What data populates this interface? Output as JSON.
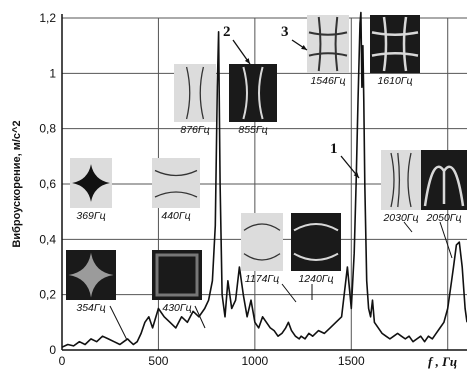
{
  "chart_data": {
    "type": "line",
    "title": "",
    "xlabel": "f , Гц",
    "ylabel": "Виброускорение, м/с^2",
    "xlim": [
      0,
      2100
    ],
    "ylim": [
      0,
      1.2
    ],
    "grid": true,
    "x_ticks": [
      0,
      500,
      1000,
      1500,
      2000
    ],
    "x_tick_labels": [
      "0",
      "500",
      "1000",
      "1500",
      ""
    ],
    "y_ticks": [
      0,
      0.2,
      0.4,
      0.6,
      0.8,
      1.0,
      1.2
    ],
    "y_tick_labels": [
      "0",
      "0,2",
      "0,4",
      "0,6",
      "0,8",
      "1",
      "1,2"
    ],
    "series": [
      {
        "name": "",
        "x": [
          0,
          30,
          60,
          90,
          120,
          150,
          180,
          210,
          240,
          270,
          300,
          320,
          340,
          354,
          370,
          390,
          410,
          430,
          450,
          470,
          500,
          530,
          560,
          590,
          620,
          650,
          680,
          710,
          740,
          760,
          780,
          795,
          805,
          812,
          820,
          830,
          845,
          860,
          880,
          900,
          920,
          940,
          960,
          980,
          1000,
          1020,
          1040,
          1060,
          1080,
          1100,
          1120,
          1140,
          1160,
          1174,
          1190,
          1210,
          1230,
          1240,
          1260,
          1280,
          1300,
          1330,
          1360,
          1390,
          1420,
          1450,
          1480,
          1500,
          1515,
          1525,
          1535,
          1545,
          1550,
          1555,
          1560,
          1565,
          1570,
          1580,
          1590,
          1600,
          1610,
          1620,
          1640,
          1660,
          1680,
          1700,
          1720,
          1740,
          1760,
          1780,
          1800,
          1820,
          1840,
          1860,
          1880,
          1900,
          1920,
          1940,
          1960,
          1980,
          2000,
          2020,
          2030,
          2045,
          2060,
          2075,
          2090,
          2100
        ],
        "y": [
          0.01,
          0.02,
          0.015,
          0.03,
          0.02,
          0.04,
          0.03,
          0.05,
          0.04,
          0.03,
          0.02,
          0.03,
          0.04,
          0.03,
          0.02,
          0.03,
          0.06,
          0.1,
          0.12,
          0.08,
          0.15,
          0.12,
          0.1,
          0.08,
          0.12,
          0.1,
          0.14,
          0.12,
          0.15,
          0.18,
          0.25,
          0.45,
          0.95,
          1.15,
          0.6,
          0.2,
          0.12,
          0.25,
          0.15,
          0.18,
          0.3,
          0.2,
          0.12,
          0.18,
          0.1,
          0.08,
          0.12,
          0.1,
          0.08,
          0.07,
          0.05,
          0.06,
          0.08,
          0.1,
          0.07,
          0.05,
          0.04,
          0.05,
          0.04,
          0.06,
          0.05,
          0.07,
          0.06,
          0.08,
          0.1,
          0.12,
          0.3,
          0.15,
          0.35,
          0.6,
          0.9,
          1.18,
          1.22,
          0.95,
          1.1,
          0.9,
          0.6,
          0.25,
          0.15,
          0.12,
          0.18,
          0.1,
          0.08,
          0.06,
          0.05,
          0.04,
          0.05,
          0.06,
          0.05,
          0.04,
          0.05,
          0.03,
          0.04,
          0.05,
          0.03,
          0.05,
          0.04,
          0.06,
          0.08,
          0.1,
          0.15,
          0.25,
          0.3,
          0.38,
          0.39,
          0.3,
          0.15,
          0.1
        ]
      }
    ],
    "annotations": [
      {
        "text": "1",
        "x": 1540,
        "y": 0.62
      },
      {
        "text": "2",
        "x": 860,
        "y": 1.05
      },
      {
        "text": "3",
        "x": 1540,
        "y": 1.12
      }
    ]
  },
  "mode_images": [
    {
      "label": "369Гц",
      "style": "light",
      "pattern": "star"
    },
    {
      "label": "440Гц",
      "style": "light",
      "pattern": "curves-h"
    },
    {
      "label": "354Гц",
      "style": "dark",
      "pattern": "star"
    },
    {
      "label": "430Гц",
      "style": "dark",
      "pattern": "frame"
    },
    {
      "label": "876Гц",
      "style": "light",
      "pattern": "curves-v"
    },
    {
      "label": "855Гц",
      "style": "dark",
      "pattern": "curves-v"
    },
    {
      "label": "1546Гц",
      "style": "light",
      "pattern": "grid"
    },
    {
      "label": "1610Гц",
      "style": "dark",
      "pattern": "grid"
    },
    {
      "label": "1174Гц",
      "style": "light",
      "pattern": "lens"
    },
    {
      "label": "1240Гц",
      "style": "dark",
      "pattern": "lens"
    },
    {
      "label": "2030Гц",
      "style": "light",
      "pattern": "double-v"
    },
    {
      "label": "2050Гц",
      "style": "dark",
      "pattern": "arch"
    }
  ],
  "colors": {
    "line": "#111111",
    "grid": "#555555",
    "light_panel": "#dcdcdc",
    "dark_panel": "#1a1a1a"
  }
}
